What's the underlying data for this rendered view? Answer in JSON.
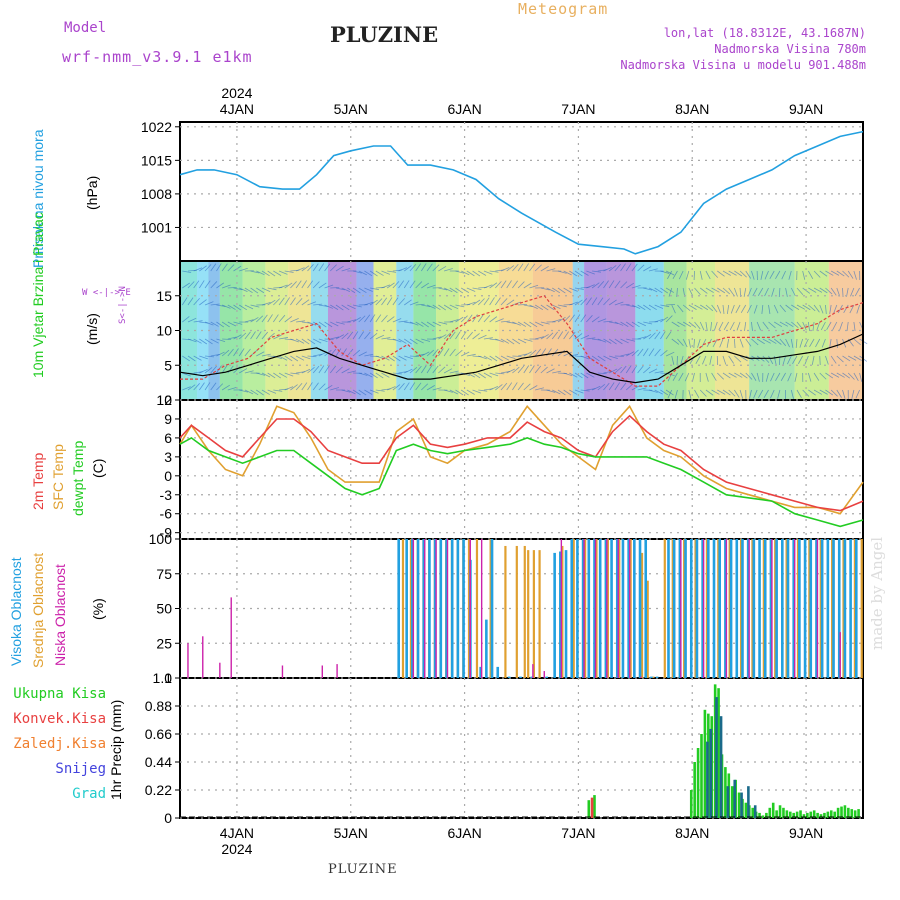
{
  "header": {
    "model_label": "Model",
    "model_run": "wrf-nmm_v3.9.1 e1km",
    "title": "PLUZINE",
    "meteogram_label": "Meteogram",
    "lonlat": "lon,lat (18.8312E, 43.1687N)",
    "altitude": "Nadmorska Visina 780m",
    "model_altitude": "Nadmorska Visina u modelu 901.488m"
  },
  "footer": {
    "station": "PLUZINE",
    "watermark": "made by Angel"
  },
  "time_axis": {
    "year": "2024",
    "dates": [
      "4JAN",
      "5JAN",
      "6JAN",
      "7JAN",
      "8JAN",
      "9JAN"
    ],
    "start_day": 3.5,
    "end_day": 9.5
  },
  "colors": {
    "pressure": "#22a0e0",
    "wind_speed": "#000000",
    "gust": "#e04040",
    "temp2m": "#e84040",
    "sfc_temp": "#e0a030",
    "dewpoint": "#22cc22",
    "high_cloud": "#22a0e0",
    "mid_cloud": "#e0a030",
    "low_cloud": "#cc22aa",
    "total_precip": "#22cc22",
    "conv_precip": "#e84040",
    "freezing_rain": "#f08030",
    "snow": "#4444dd",
    "hail": "#22cccc",
    "precip_dark": "#1a6a8a"
  },
  "panels": {
    "pressure": {
      "label": "Pritisak na nivou mora",
      "unit": "(hPa)",
      "ticks": [
        "1022",
        "1015",
        "1008",
        "1001"
      ]
    },
    "wind": {
      "label": "10m Vjetar Brzina i Pravac",
      "unit": "(m/s)",
      "ticks": [
        "15",
        "10",
        "5",
        "0"
      ],
      "compass_n": "N",
      "compass_s": "S",
      "compass_w": "W",
      "compass_e": "E",
      "compass_ns": "S<-|->N",
      "compass_we": "W <-|-> E"
    },
    "temperature": {
      "label_2m": "2m Temp",
      "label_sfc": "SFC Temp",
      "label_dew": "dewpt Temp",
      "unit": "(C)",
      "ticks": [
        "12",
        "9",
        "6",
        "3",
        "0",
        "-3",
        "-6",
        "-9"
      ]
    },
    "clouds": {
      "label_high": "Visoka Oblacnost",
      "label_mid": "Srednja Oblacnost",
      "label_low": "Niska Oblacnost",
      "unit": "(%)",
      "ticks": [
        "100",
        "75",
        "50",
        "25",
        "0"
      ]
    },
    "precip": {
      "unit": "1hr Precip (mm)",
      "ticks": [
        "1.1",
        "0.88",
        "0.66",
        "0.44",
        "0.22",
        "0"
      ],
      "legend": [
        "Ukupna Kisa",
        "Konvek.Kisa",
        "Zaledj.Kisa",
        "Snijeg",
        "Grad"
      ]
    }
  },
  "chart_data": [
    {
      "type": "line",
      "title": "Pritisak na nivou mora",
      "ylabel": "(hPa)",
      "ylim": [
        994,
        1023
      ],
      "x_unit": "day of January 2024",
      "series": [
        {
          "name": "Pritisak na nivou mora",
          "x": [
            3.5,
            3.65,
            3.8,
            4.0,
            4.2,
            4.4,
            4.55,
            4.7,
            4.85,
            5.0,
            5.2,
            5.35,
            5.5,
            5.7,
            5.9,
            6.1,
            6.3,
            6.5,
            6.8,
            7.0,
            7.2,
            7.4,
            7.5,
            7.7,
            7.9,
            8.1,
            8.3,
            8.5,
            8.7,
            8.9,
            9.1,
            9.3,
            9.5
          ],
          "y": [
            1012,
            1013,
            1013,
            1012,
            1009.5,
            1009,
            1009,
            1012,
            1016,
            1017,
            1018,
            1018,
            1014,
            1014,
            1013,
            1011,
            1007,
            1004,
            1000,
            997.5,
            997,
            996.5,
            995.5,
            997,
            1000,
            1006,
            1009,
            1011,
            1013,
            1016,
            1018,
            1020,
            1021
          ]
        }
      ]
    },
    {
      "type": "line",
      "title": "10m Vjetar Brzina i Pravac",
      "ylabel": "(m/s)",
      "ylim": [
        0,
        20
      ],
      "x_unit": "day of January 2024",
      "series": [
        {
          "name": "wind speed",
          "x": [
            3.5,
            3.7,
            3.9,
            4.1,
            4.3,
            4.5,
            4.7,
            4.9,
            5.1,
            5.3,
            5.5,
            5.7,
            5.9,
            6.1,
            6.3,
            6.5,
            6.7,
            6.9,
            7.1,
            7.3,
            7.5,
            7.7,
            7.9,
            8.1,
            8.3,
            8.5,
            8.7,
            8.9,
            9.1,
            9.3,
            9.5
          ],
          "y": [
            4,
            3.5,
            4,
            5,
            6,
            7,
            7.5,
            6,
            5,
            4,
            3,
            3,
            3.5,
            4,
            5,
            6,
            6.5,
            7,
            4,
            3,
            2.5,
            3,
            5,
            7,
            7,
            6,
            6,
            6.5,
            7,
            8,
            9.5
          ]
        },
        {
          "name": "gust",
          "x": [
            3.5,
            3.7,
            3.9,
            4.1,
            4.3,
            4.5,
            4.7,
            4.9,
            5.1,
            5.3,
            5.5,
            5.7,
            5.9,
            6.1,
            6.3,
            6.5,
            6.7,
            6.9,
            7.1,
            7.3,
            7.5,
            7.7,
            7.9,
            8.1,
            8.3,
            8.5,
            8.7,
            8.9,
            9.1,
            9.3,
            9.5
          ],
          "y": [
            3,
            3,
            5,
            6,
            9,
            10,
            11,
            7,
            5,
            6,
            8,
            5,
            10,
            12,
            13,
            14,
            15,
            11,
            6,
            4,
            2,
            2,
            5,
            8,
            9,
            9,
            9,
            10,
            11,
            13,
            14
          ]
        }
      ]
    },
    {
      "type": "line",
      "title": "2m Temp / SFC Temp / dewpt Temp",
      "ylabel": "(C)",
      "ylim": [
        -10,
        12
      ],
      "x_unit": "day of January 2024",
      "series": [
        {
          "name": "2m Temp",
          "x": [
            3.5,
            3.6,
            3.75,
            3.9,
            4.05,
            4.2,
            4.35,
            4.5,
            4.65,
            4.8,
            4.95,
            5.1,
            5.25,
            5.4,
            5.55,
            5.7,
            5.85,
            6.0,
            6.2,
            6.4,
            6.55,
            6.7,
            6.85,
            7.0,
            7.15,
            7.3,
            7.45,
            7.6,
            7.75,
            7.9,
            8.1,
            8.3,
            8.5,
            8.7,
            8.9,
            9.1,
            9.3,
            9.5
          ],
          "y": [
            6,
            8,
            6,
            4,
            3,
            6,
            9,
            9,
            7,
            4,
            3,
            2,
            2,
            6,
            8,
            5,
            4.5,
            5,
            6,
            6,
            8.5,
            7,
            6,
            4,
            3,
            7,
            9.5,
            7,
            5,
            4,
            1,
            -1,
            -2,
            -3,
            -4,
            -5,
            -5.5,
            -4
          ]
        },
        {
          "name": "SFC Temp",
          "x": [
            3.5,
            3.6,
            3.75,
            3.9,
            4.05,
            4.2,
            4.35,
            4.5,
            4.65,
            4.8,
            4.95,
            5.1,
            5.25,
            5.4,
            5.55,
            5.7,
            5.85,
            6.0,
            6.2,
            6.4,
            6.55,
            6.7,
            6.85,
            7.0,
            7.15,
            7.3,
            7.45,
            7.6,
            7.75,
            7.9,
            8.1,
            8.3,
            8.5,
            8.7,
            8.9,
            9.1,
            9.3,
            9.5
          ],
          "y": [
            5,
            8,
            4,
            1,
            0,
            5,
            11,
            10,
            6,
            1,
            -1,
            -1,
            -1,
            7,
            9,
            3,
            2,
            4,
            5,
            7,
            11,
            8,
            5,
            3,
            1,
            8,
            11,
            6,
            4,
            3,
            0,
            -2,
            -3,
            -4,
            -5,
            -5,
            -6,
            -1
          ]
        },
        {
          "name": "dewpt Temp",
          "x": [
            3.5,
            3.6,
            3.75,
            3.9,
            4.05,
            4.2,
            4.35,
            4.5,
            4.65,
            4.8,
            4.95,
            5.1,
            5.25,
            5.4,
            5.55,
            5.7,
            5.85,
            6.0,
            6.2,
            6.4,
            6.55,
            6.7,
            6.85,
            7.0,
            7.15,
            7.3,
            7.45,
            7.6,
            7.75,
            7.9,
            8.1,
            8.3,
            8.5,
            8.7,
            8.9,
            9.1,
            9.3,
            9.5
          ],
          "y": [
            5,
            6,
            4,
            3,
            2,
            3,
            4,
            4,
            2,
            0,
            -2,
            -3,
            -2,
            4,
            5,
            4,
            3.5,
            4,
            4.5,
            5,
            6,
            5,
            4.5,
            3.5,
            3,
            3,
            3,
            3,
            2,
            1,
            -1,
            -3,
            -3.5,
            -4,
            -6,
            -7,
            -8,
            -7
          ]
        }
      ]
    },
    {
      "type": "bar",
      "title": "Visoka / Srednja / Niska Oblacnost",
      "ylabel": "(%)",
      "ylim": [
        0,
        100
      ],
      "x_unit": "day of January 2024",
      "series": [
        {
          "name": "Visoka Oblacnost",
          "x": [
            5.43,
            5.5,
            5.55,
            5.6,
            5.65,
            5.7,
            5.75,
            5.8,
            5.85,
            5.9,
            5.95,
            6.0,
            6.06,
            6.15,
            6.2,
            6.25,
            6.3,
            6.4,
            6.5,
            6.6,
            6.73,
            6.8,
            6.85,
            6.9,
            6.95,
            7.0,
            7.05,
            7.1,
            7.15,
            7.2,
            7.25,
            7.3,
            7.35,
            7.4,
            7.45,
            7.5,
            7.55,
            7.6,
            7.65,
            7.7,
            7.8,
            7.85,
            7.9,
            7.95,
            8.0,
            8.05,
            8.1,
            8.15,
            8.2,
            8.25,
            8.3,
            8.35,
            8.4,
            8.45,
            8.5,
            8.55,
            8.6,
            8.65,
            8.7,
            8.75,
            8.8,
            8.85,
            8.9,
            8.95,
            9.0,
            9.05,
            9.1,
            9.15,
            9.2,
            9.25,
            9.3,
            9.35,
            9.4,
            9.45
          ],
          "y": [
            100,
            100,
            100,
            100,
            100,
            100,
            100,
            100,
            100,
            100,
            100,
            100,
            85,
            8,
            42,
            100,
            8,
            1,
            1,
            1,
            1,
            90,
            91,
            92,
            100,
            100,
            100,
            100,
            100,
            100,
            100,
            100,
            100,
            100,
            100,
            100,
            100,
            100,
            1,
            1,
            100,
            100,
            100,
            100,
            100,
            100,
            100,
            100,
            100,
            100,
            100,
            100,
            100,
            100,
            100,
            100,
            100,
            100,
            100,
            100,
            100,
            100,
            100,
            100,
            100,
            100,
            100,
            100,
            100,
            100,
            100,
            100,
            100,
            100
          ]
        },
        {
          "name": "Srednja Oblacnost",
          "x": [
            5.45,
            5.52,
            5.58,
            5.63,
            5.68,
            5.73,
            5.78,
            5.83,
            5.88,
            5.93,
            5.98,
            6.03,
            6.1,
            6.22,
            6.35,
            6.45,
            6.52,
            6.55,
            6.6,
            6.65,
            6.85,
            6.95,
            7.05,
            7.15,
            7.25,
            7.35,
            7.45,
            7.55,
            7.6,
            7.65,
            7.75,
            7.82,
            7.92,
            8.02,
            8.12,
            8.22,
            8.32,
            8.42,
            8.52,
            8.62,
            8.72,
            8.82,
            8.92,
            9.02,
            9.12,
            9.22,
            9.32,
            9.42,
            9.48
          ],
          "y": [
            100,
            100,
            100,
            100,
            100,
            100,
            100,
            100,
            100,
            100,
            100,
            100,
            100,
            100,
            95,
            95,
            95,
            92,
            92,
            92,
            95,
            100,
            100,
            100,
            100,
            100,
            100,
            90,
            70,
            1,
            100,
            100,
            100,
            100,
            100,
            100,
            100,
            100,
            100,
            100,
            100,
            100,
            100,
            100,
            100,
            100,
            100,
            100,
            100
          ]
        },
        {
          "name": "Niska Oblacnost",
          "x": [
            3.57,
            3.7,
            3.85,
            3.95,
            4.4,
            4.75,
            4.88,
            5.55,
            5.65,
            5.75,
            5.85,
            6.05,
            6.15,
            6.6,
            6.7,
            6.85,
            7.05,
            7.15,
            7.25,
            7.35,
            7.45,
            7.55,
            7.9,
            8.1,
            8.3,
            8.5,
            8.7,
            8.9,
            9.1,
            9.3
          ],
          "y": [
            25,
            30,
            11,
            58,
            9,
            9,
            10,
            100,
            100,
            100,
            100,
            100,
            100,
            10,
            5,
            100,
            100,
            100,
            100,
            100,
            100,
            1,
            100,
            100,
            100,
            100,
            100,
            100,
            100,
            33
          ]
        }
      ]
    },
    {
      "type": "bar",
      "title": "1hr Precip",
      "ylabel": "1hr Precip (mm)",
      "ylim": [
        0,
        1.1
      ],
      "x_unit": "day of January 2024",
      "series": [
        {
          "name": "Ukupna Kisa",
          "x": [
            7.1,
            7.15,
            8.0,
            8.03,
            8.06,
            8.09,
            8.12,
            8.15,
            8.18,
            8.21,
            8.24,
            8.27,
            8.3,
            8.33,
            8.36,
            8.39,
            8.42,
            8.45,
            8.48,
            8.51,
            8.54,
            8.57,
            8.6,
            8.63,
            8.66,
            8.69,
            8.72,
            8.75,
            8.78,
            8.81,
            8.84,
            8.87,
            8.9,
            8.93,
            8.96,
            8.99,
            9.02,
            9.05,
            9.08,
            9.11,
            9.14,
            9.17,
            9.2,
            9.23,
            9.26,
            9.29,
            9.32,
            9.35,
            9.38,
            9.41,
            9.44,
            9.47
          ],
          "y": [
            0.14,
            0.18,
            0.22,
            0.44,
            0.55,
            0.66,
            0.85,
            0.82,
            0.8,
            1.05,
            1.02,
            0.5,
            0.4,
            0.35,
            0.25,
            0.3,
            0.2,
            0.15,
            0.12,
            0.1,
            0.08,
            0.05,
            0.04,
            0.02,
            0.04,
            0.08,
            0.12,
            0.06,
            0.1,
            0.08,
            0.06,
            0.05,
            0.04,
            0.05,
            0.06,
            0.03,
            0.04,
            0.05,
            0.06,
            0.04,
            0.03,
            0.04,
            0.05,
            0.06,
            0.05,
            0.08,
            0.09,
            0.1,
            0.08,
            0.07,
            0.06,
            0.07
          ]
        },
        {
          "name": "Konvek.Kisa",
          "x": [
            7.12
          ],
          "y": [
            0.16
          ]
        },
        {
          "name": "Snijeg",
          "x": [
            8.12,
            8.15,
            8.2,
            8.24,
            8.3,
            8.36,
            8.42,
            8.48,
            8.54
          ],
          "y": [
            0.6,
            0.7,
            0.95,
            0.8,
            0.25,
            0.3,
            0.2,
            0.25,
            0.1
          ]
        }
      ]
    }
  ]
}
